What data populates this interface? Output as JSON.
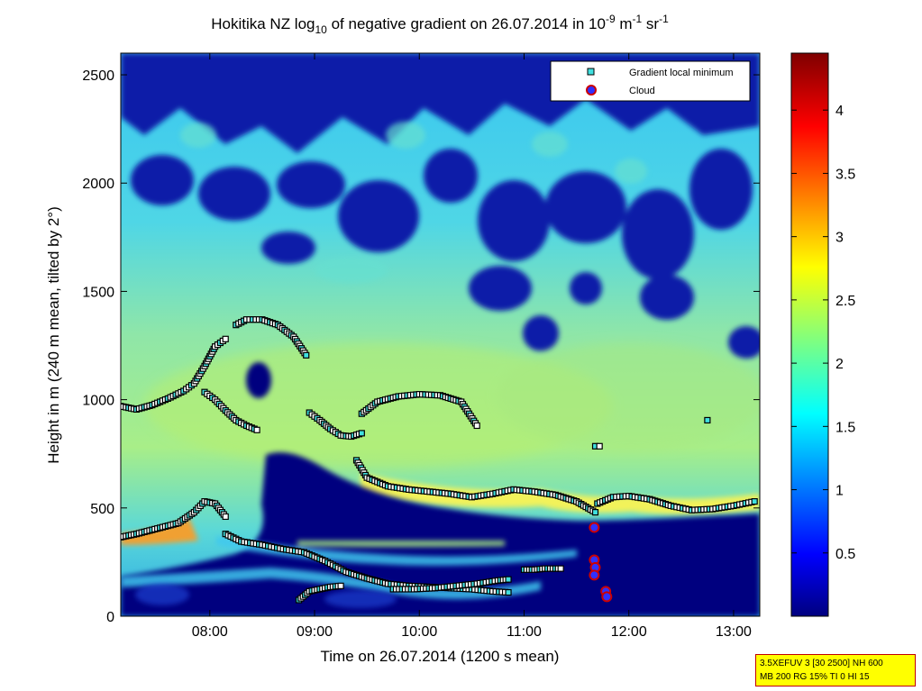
{
  "colors": {
    "background_low": "#00007f",
    "mid_cyan": "#33ccee",
    "yellow_band": "#f0f050",
    "marker_gradient": "#40e0e0",
    "marker_gradient_dark": "#000000",
    "marker_cloud": "#cc0000",
    "marker_cloud_fill": "#3030ff",
    "info_box_bg": "#ffff00",
    "info_box_border": "#c00000"
  },
  "title": {
    "pre": "Hokitika NZ log",
    "sub": "10",
    "mid": " of negative gradient on 26.07.2014 in 10",
    "sup1": "-9",
    "unit1": " m",
    "sup2": "-1",
    "unit2": " sr",
    "sup3": "-1"
  },
  "info_box": {
    "line1": "3.5XEFUV 3 [30 2500] NH 600",
    "line2": "MB 200 RG 15% TI 0 HI 15"
  },
  "chart_data": {
    "type": "heatmap",
    "xlabel": "Time on 26.07.2014 (1200 s mean)",
    "ylabel": "Height in m (240 m mean, tilted by 2°)",
    "x_ticks": [
      "08:00",
      "09:00",
      "10:00",
      "11:00",
      "12:00",
      "13:00"
    ],
    "x_tick_hours": [
      8,
      9,
      10,
      11,
      12,
      13
    ],
    "xlim_hours": [
      7.15,
      13.25
    ],
    "y_ticks": [
      "0",
      "500",
      "1000",
      "1500",
      "2000",
      "2500"
    ],
    "y_tick_values": [
      0,
      500,
      1000,
      1500,
      2000,
      2500
    ],
    "ylim": [
      0,
      2600
    ],
    "colorbar": {
      "ticks": [
        "0.5",
        "1",
        "1.5",
        "2",
        "2.5",
        "3",
        "3.5",
        "4"
      ],
      "tick_values": [
        0.5,
        1,
        1.5,
        2,
        2.5,
        3,
        3.5,
        4
      ],
      "range": [
        0,
        4.45
      ],
      "colormap": "jet"
    },
    "legend": {
      "placement": "top-right",
      "entries": [
        "Gradient local minimum",
        "Cloud"
      ]
    },
    "series": [
      {
        "name": "Gradient local minimum",
        "tracks": [
          {
            "x": [
              7.15,
              7.3,
              7.5,
              7.7,
              7.85,
              7.95,
              8.05,
              8.15
            ],
            "y": [
              365,
              380,
              405,
              430,
              480,
              530,
              520,
              460
            ]
          },
          {
            "x": [
              7.15,
              7.3,
              7.45,
              7.6,
              7.75,
              7.85,
              7.95,
              8.05,
              8.15
            ],
            "y": [
              970,
              955,
              975,
              1005,
              1040,
              1075,
              1155,
              1245,
              1280
            ]
          },
          {
            "x": [
              7.95,
              8.05,
              8.15,
              8.25,
              8.35,
              8.45
            ],
            "y": [
              1035,
              1000,
              950,
              905,
              880,
              860
            ]
          },
          {
            "x": [
              8.15,
              8.3,
              8.5,
              8.7,
              8.9,
              9.1,
              9.3,
              9.5,
              9.7,
              9.9,
              10.1,
              10.3,
              10.5,
              10.7,
              10.85
            ],
            "y": [
              380,
              345,
              330,
              310,
              295,
              255,
              205,
              175,
              150,
              140,
              135,
              130,
              125,
              115,
              110
            ]
          },
          {
            "x": [
              8.25,
              8.35,
              8.5,
              8.65,
              8.8,
              8.92
            ],
            "y": [
              1345,
              1370,
              1370,
              1345,
              1290,
              1205
            ]
          },
          {
            "x": [
              8.95,
              9.05,
              9.15,
              9.25,
              9.35,
              9.45
            ],
            "y": [
              940,
              905,
              865,
              835,
              830,
              845
            ]
          },
          {
            "x": [
              9.45,
              9.6,
              9.8,
              10.0,
              10.2,
              10.4,
              10.55
            ],
            "y": [
              935,
              990,
              1015,
              1025,
              1020,
              990,
              880
            ]
          },
          {
            "x": [
              9.4,
              9.5,
              9.7,
              9.9,
              10.1,
              10.3,
              10.5,
              10.7,
              10.9,
              11.1,
              11.3,
              11.5,
              11.68
            ],
            "y": [
              720,
              640,
              600,
              585,
              575,
              565,
              550,
              565,
              585,
              575,
              560,
              530,
              480
            ]
          },
          {
            "x": [
              11.7,
              11.85,
              12.0,
              12.2,
              12.4,
              12.6,
              12.8,
              13.0,
              13.2
            ],
            "y": [
              520,
              550,
              555,
              540,
              510,
              490,
              495,
              510,
              530
            ]
          },
          {
            "x": [
              8.85,
              8.95,
              9.05,
              9.15,
              9.25
            ],
            "y": [
              75,
              115,
              125,
              135,
              140
            ]
          },
          {
            "x": [
              9.75,
              9.95,
              10.15,
              10.35,
              10.55,
              10.75,
              10.85
            ],
            "y": [
              125,
              125,
              130,
              140,
              150,
              165,
              170
            ]
          },
          {
            "x": [
              11.0,
              11.1,
              11.2,
              11.3,
              11.35
            ],
            "y": [
              215,
              215,
              220,
              220,
              220
            ]
          },
          {
            "x": [
              11.68,
              11.72
            ],
            "y": [
              785,
              785
            ]
          },
          {
            "x": [
              12.75
            ],
            "y": [
              905
            ]
          }
        ]
      },
      {
        "name": "Cloud",
        "points": {
          "x": [
            11.67,
            11.67,
            11.68,
            11.67,
            11.78,
            11.79
          ],
          "y": [
            410,
            260,
            225,
            190,
            115,
            90
          ]
        }
      }
    ]
  }
}
